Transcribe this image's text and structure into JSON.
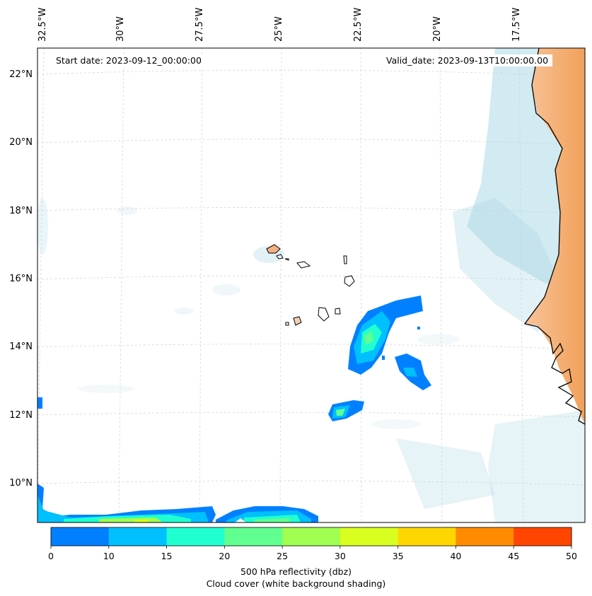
{
  "map": {
    "start_date": "Start date: 2023-09-12_00:00:00",
    "valid_date": "Valid_date: 2023-09-13T10:00:00.00",
    "lon_labels": [
      "32.5°W",
      "30°W",
      "27.5°W",
      "25°W",
      "22.5°W",
      "20°W",
      "17.5°W"
    ],
    "lat_labels": [
      "22°N",
      "20°N",
      "18°N",
      "16°N",
      "14°N",
      "12°N",
      "10°N"
    ],
    "extent": {
      "lon_min": -32.6,
      "lon_max": -15.3,
      "lat_min": 8.9,
      "lat_max": 22.8
    },
    "colors": {
      "cloud": "#add8e6",
      "land_heat": "#f4a460",
      "coastline": "#000000",
      "grid": "#cccccc"
    }
  },
  "colorbar": {
    "ticks": [
      "0",
      "10",
      "15",
      "20",
      "25",
      "30",
      "35",
      "40",
      "45",
      "50"
    ],
    "colors": [
      "#0080ff",
      "#00c0ff",
      "#20ffd0",
      "#60ff90",
      "#a0ff50",
      "#d8ff20",
      "#ffd700",
      "#ff8c00",
      "#ff4500"
    ],
    "label_line1": "500 hPa reflectivity (dbz)",
    "label_line2": "Cloud cover (white background shading)"
  }
}
